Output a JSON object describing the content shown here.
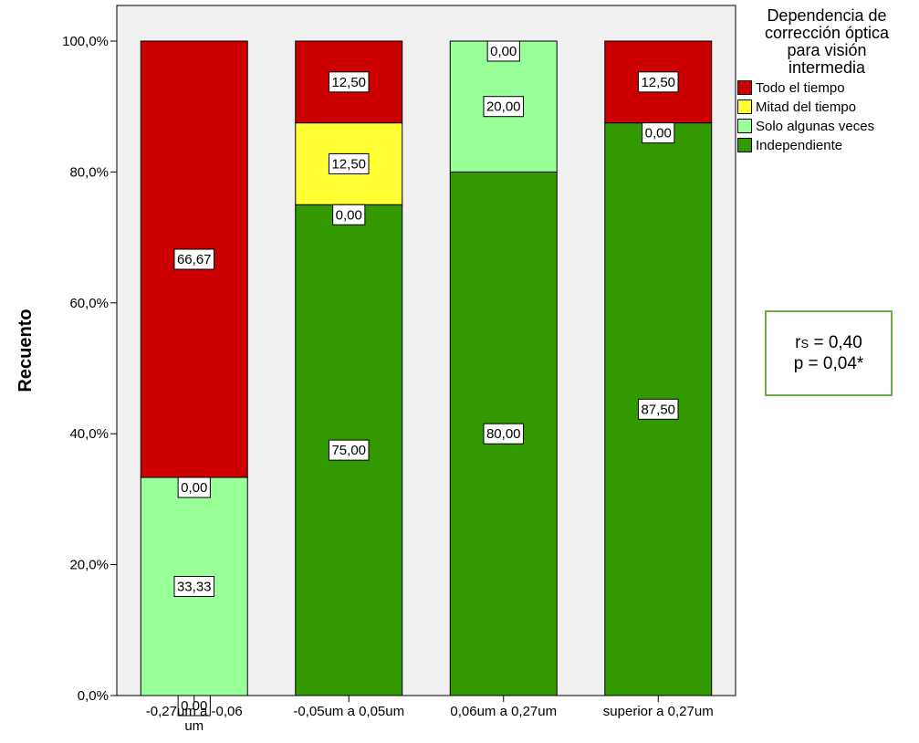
{
  "chart_data": {
    "type": "bar",
    "stacked": true,
    "orientation": "vertical",
    "ylabel": "Recuento",
    "yticks": [
      "0,0%",
      "20,0%",
      "40,0%",
      "60,0%",
      "80,0%",
      "100,0%"
    ],
    "ylim": [
      0,
      100
    ],
    "categories": [
      [
        "-0,27um a -0,06",
        "um"
      ],
      [
        "-0,05um a 0,05um"
      ],
      [
        "0,06um a 0,27um"
      ],
      [
        "superior a 0,27um"
      ]
    ],
    "series": [
      {
        "name": "Independiente",
        "color": "#339900",
        "values": [
          0,
          75,
          80,
          87.5
        ],
        "labels": [
          "0,00",
          "75,00",
          "80,00",
          "87,50"
        ]
      },
      {
        "name": "Solo algunas veces",
        "color": "#99ff99",
        "values": [
          33.33,
          0,
          20,
          0
        ],
        "labels": [
          "33,33",
          "0,00",
          "20,00",
          "0,00"
        ]
      },
      {
        "name": "Mitad del tiempo",
        "color": "#ffff33",
        "values": [
          0,
          12.5,
          0,
          0
        ],
        "labels": [
          "0,00",
          "12,50",
          "0,00",
          ""
        ]
      },
      {
        "name": "Todo el tiempo",
        "color": "#cc0000",
        "values": [
          66.67,
          12.5,
          0,
          12.5
        ],
        "labels": [
          "66,67",
          "12,50",
          "",
          "12,50"
        ]
      }
    ],
    "legend": {
      "title_lines": [
        "Dependencia de",
        "corrección óptica",
        "para visión",
        "intermedia"
      ],
      "placement": "right",
      "order": [
        "Todo el tiempo",
        "Mitad del tiempo",
        "Solo algunas veces",
        "Independiente"
      ]
    }
  },
  "stats": {
    "r_main": "r",
    "r_sub": "S",
    "r_rest": " = 0,40",
    "p": "p = 0,04*"
  },
  "colors": {
    "plot_bg": "#f0f0f0",
    "box_border": "#70ad47"
  }
}
